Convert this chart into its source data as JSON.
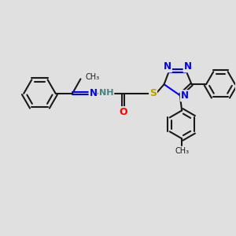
{
  "background_color": "#e0e0e0",
  "bond_color": "#1a1a1a",
  "N_color": "#0000ff",
  "O_color": "#ff0000",
  "S_color": "#b8a000",
  "H_color": "#4a8080",
  "font_size": 8.5,
  "small_font": 7.0,
  "line_width": 1.5,
  "figsize": [
    3.0,
    3.0
  ],
  "dpi": 100,
  "xlim": [
    0,
    10
  ],
  "ylim": [
    0,
    10
  ]
}
